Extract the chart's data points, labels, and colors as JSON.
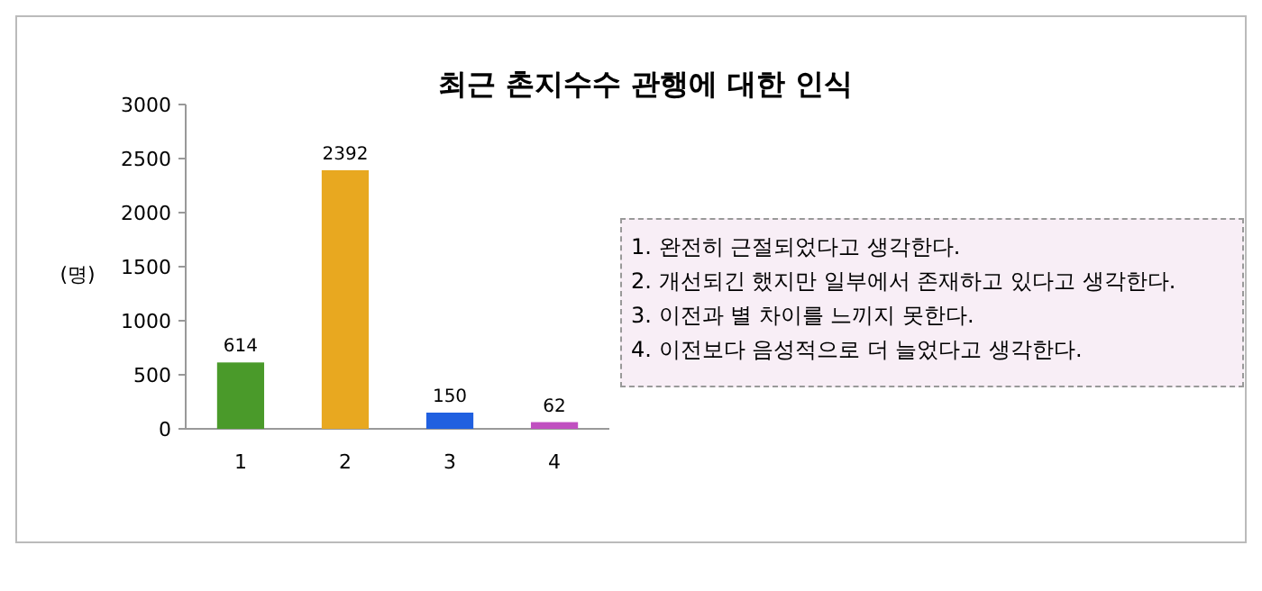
{
  "chart_data": {
    "type": "bar",
    "title": "최근 촌지수수 관행에 대한 인식",
    "ylabel": "(명)",
    "categories": [
      "1",
      "2",
      "3",
      "4"
    ],
    "values": [
      614,
      2392,
      150,
      62
    ],
    "colors": [
      "#4a9a2a",
      "#e8a820",
      "#2060e0",
      "#c050c0"
    ],
    "ylim": [
      0,
      3000
    ],
    "yticks": [
      0,
      500,
      1000,
      1500,
      2000,
      2500,
      3000
    ],
    "data_labels": true,
    "annotations": [
      "1. 완전히 근절되었다고 생각한다.",
      "2. 개선되긴 했지만 일부에서 존재하고 있다고 생각한다.",
      "3. 이전과 별 차이를 느끼지 못한다.",
      "4. 이전보다 음성적으로 더 늘었다고 생각한다."
    ]
  }
}
